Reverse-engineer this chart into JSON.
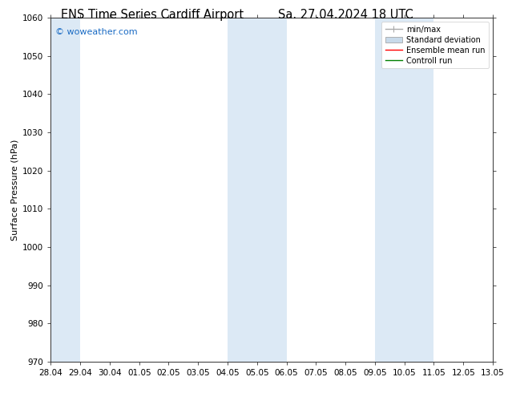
{
  "title_left": "ENS Time Series Cardiff Airport",
  "title_right": "Sa. 27.04.2024 18 UTC",
  "ylabel": "Surface Pressure (hPa)",
  "ylim": [
    970,
    1060
  ],
  "yticks": [
    970,
    980,
    990,
    1000,
    1010,
    1020,
    1030,
    1040,
    1050,
    1060
  ],
  "xtick_labels": [
    "28.04",
    "29.04",
    "30.04",
    "01.05",
    "02.05",
    "03.05",
    "04.05",
    "05.05",
    "06.05",
    "07.05",
    "08.05",
    "09.05",
    "10.05",
    "11.05",
    "12.05",
    "13.05"
  ],
  "xtick_positions": [
    0,
    1,
    2,
    3,
    4,
    5,
    6,
    7,
    8,
    9,
    10,
    11,
    12,
    13,
    14,
    15
  ],
  "shaded_bands": [
    {
      "x_start": 0.0,
      "x_end": 1.0,
      "color": "#dce9f5"
    },
    {
      "x_start": 6.0,
      "x_end": 8.0,
      "color": "#dce9f5"
    },
    {
      "x_start": 11.0,
      "x_end": 13.0,
      "color": "#dce9f5"
    }
  ],
  "watermark_text": "© woweather.com",
  "watermark_color": "#1a6bc4",
  "background_color": "#ffffff",
  "plot_bg_color": "#ffffff",
  "legend_items": [
    {
      "label": "min/max",
      "color": "#aaaaaa",
      "lw": 1.0,
      "style": "line_with_caps"
    },
    {
      "label": "Standard deviation",
      "color": "#c8daea",
      "style": "rect"
    },
    {
      "label": "Ensemble mean run",
      "color": "#ff0000",
      "lw": 1.0,
      "style": "line"
    },
    {
      "label": "Controll run",
      "color": "#008000",
      "lw": 1.0,
      "style": "line"
    }
  ],
  "title_fontsize": 10.5,
  "label_fontsize": 8,
  "tick_fontsize": 7.5,
  "watermark_fontsize": 8,
  "legend_fontsize": 7
}
